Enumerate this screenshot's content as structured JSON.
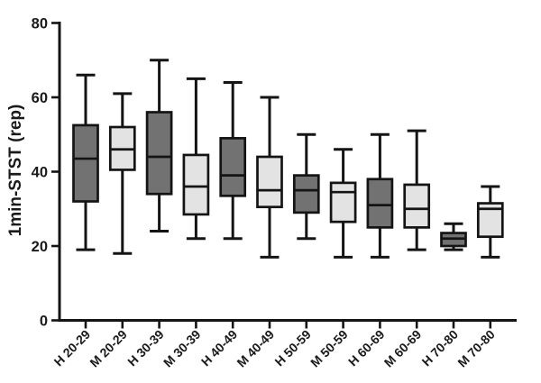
{
  "chart_data": {
    "type": "box",
    "title": "",
    "xlabel": "",
    "ylabel": "1min-STST (rep)",
    "ylim": [
      0,
      80
    ],
    "yticks": [
      0,
      20,
      40,
      60,
      80
    ],
    "grid": false,
    "legend": "none",
    "colors": {
      "group_H_fill": "#727272",
      "group_M_fill": "#e3e3e3",
      "stroke": "#141414",
      "background": "#ffffff"
    },
    "categories": [
      "H 20-29",
      "M 20-29",
      "H 30-39",
      "M 30-39",
      "H 40-49",
      "M 40-49",
      "H 50-59",
      "M 50-59",
      "H 60-69",
      "M 60-69",
      "H 70-80",
      "M 70-80"
    ],
    "series": [
      {
        "category": "H 20-29",
        "group": "H",
        "min": 19,
        "q1": 32,
        "median": 43.5,
        "q3": 52.5,
        "max": 66
      },
      {
        "category": "M 20-29",
        "group": "M",
        "min": 18,
        "q1": 40.5,
        "median": 46,
        "q3": 52,
        "max": 61
      },
      {
        "category": "H 30-39",
        "group": "H",
        "min": 24,
        "q1": 34,
        "median": 44,
        "q3": 56,
        "max": 70
      },
      {
        "category": "M 30-39",
        "group": "M",
        "min": 22,
        "q1": 28.5,
        "median": 36,
        "q3": 44.5,
        "max": 65
      },
      {
        "category": "H 40-49",
        "group": "H",
        "min": 22,
        "q1": 33.5,
        "median": 39,
        "q3": 49,
        "max": 64
      },
      {
        "category": "M 40-49",
        "group": "M",
        "min": 17,
        "q1": 30.5,
        "median": 35,
        "q3": 44,
        "max": 60
      },
      {
        "category": "H 50-59",
        "group": "H",
        "min": 22,
        "q1": 29,
        "median": 35,
        "q3": 39,
        "max": 50
      },
      {
        "category": "M 50-59",
        "group": "M",
        "min": 17,
        "q1": 26.5,
        "median": 34.5,
        "q3": 37,
        "max": 46
      },
      {
        "category": "H 60-69",
        "group": "H",
        "min": 17,
        "q1": 25,
        "median": 31,
        "q3": 38,
        "max": 50
      },
      {
        "category": "M 60-69",
        "group": "M",
        "min": 19,
        "q1": 25,
        "median": 30,
        "q3": 36.5,
        "max": 51
      },
      {
        "category": "H 70-80",
        "group": "H",
        "min": 19,
        "q1": 20,
        "median": 22,
        "q3": 23.5,
        "max": 26
      },
      {
        "category": "M 70-80",
        "group": "M",
        "min": 17,
        "q1": 22.5,
        "median": 30,
        "q3": 31.5,
        "max": 36
      }
    ]
  }
}
